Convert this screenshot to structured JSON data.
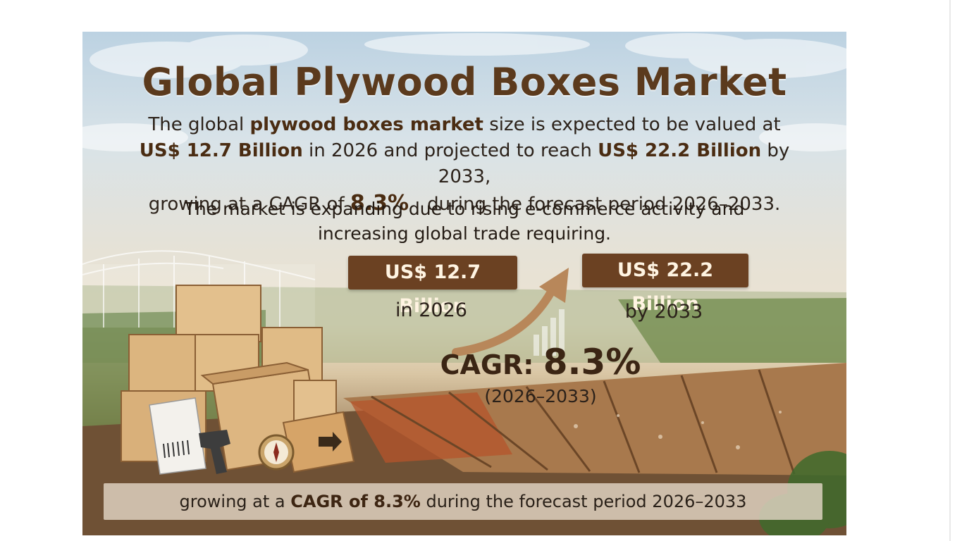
{
  "title": "Global Plywood Boxes Market",
  "intro": {
    "line1_a": "The global ",
    "line1_b": "plywood boxes market",
    "line1_c": " size is expected to be valued at",
    "line2_a": "US$ 12.7 Billion",
    "line2_b": " in 2026 and projected to reach ",
    "line2_c": "US$ 22.2 Billion",
    "line2_d": " by 2033,",
    "line3_a": "growing at a CAGR of ",
    "line3_b": "8.3%",
    "line3_c": "during the forecast period 2026–2033."
  },
  "driver": {
    "line1": "The market is expanding due to rising e-commerce activity and",
    "line2": "increasing global trade requiring."
  },
  "value_2026": {
    "amount": "US$ 12.7 Billion",
    "label": "in 2026"
  },
  "value_2033": {
    "amount": "US$ 22.2 Billion",
    "label": "by 2033"
  },
  "cagr": {
    "label": "CAGR: ",
    "value": "8.3%",
    "period": "(2026–2033)"
  },
  "footer": {
    "a": "growing at a ",
    "b": "CAGR of 8.3%",
    "c": " during the forecast period 2026–2033"
  },
  "colors": {
    "title": "#5b3a1d",
    "badge": "#6b4122",
    "badge_text": "#fff4e2",
    "arrow": "#b8875a"
  },
  "illustration": {
    "items": [
      "greenhouse-icon",
      "wooden-crate-icon",
      "open-crate-icon",
      "cardboard-box-icon",
      "shipping-label-icon",
      "barcode-scanner-icon",
      "compass-icon",
      "wooden-deck-icon"
    ]
  }
}
